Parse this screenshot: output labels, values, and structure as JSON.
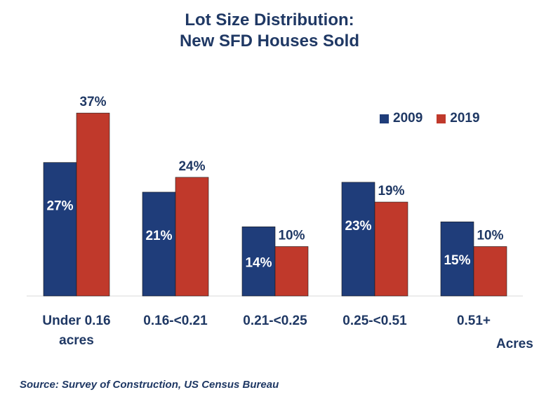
{
  "title_lines": [
    "Lot Size Distribution:",
    "New SFD Houses Sold"
  ],
  "source": "Source: Survey of Construction,  US Census Bureau",
  "x_unit_label": "Acres",
  "chart_data": {
    "type": "bar",
    "categories": [
      [
        "Under 0.16",
        "acres"
      ],
      [
        "0.16-<0.21"
      ],
      [
        "0.21-<0.25"
      ],
      [
        "0.25-<0.51"
      ],
      [
        "0.51+"
      ]
    ],
    "series": [
      {
        "name": "2009",
        "values": [
          27,
          21,
          14,
          23,
          15
        ],
        "labels": [
          "27%",
          "21%",
          "14%",
          "23%",
          "15%"
        ],
        "color": "#1f3d7a"
      },
      {
        "name": "2019",
        "values": [
          37,
          24,
          10,
          19,
          10
        ],
        "labels": [
          "37%",
          "24%",
          "10%",
          "19%",
          "10%"
        ],
        "color": "#c0392b"
      }
    ],
    "ylim": [
      0,
      40
    ],
    "grid": false,
    "legend_position": "top-right"
  }
}
